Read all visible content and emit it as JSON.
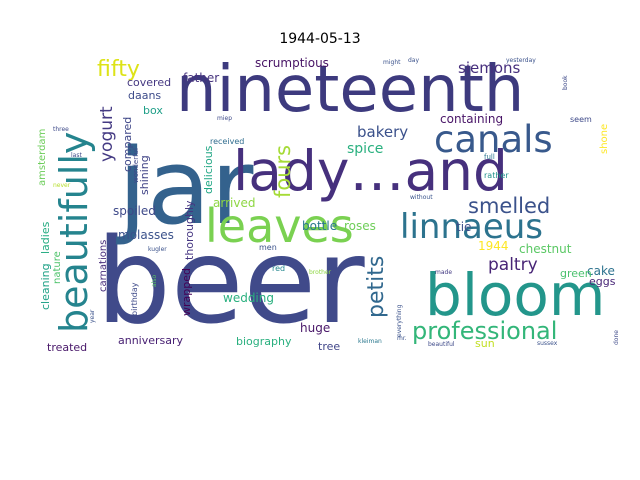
{
  "chart_data": {
    "type": "wordcloud",
    "title": "1944-05-13",
    "colormap": "viridis",
    "background": "#ffffff",
    "words": [
      {
        "text": "beer",
        "weight": 100,
        "color": "#404a8a"
      },
      {
        "text": "jar",
        "weight": 95,
        "color": "#34628d"
      },
      {
        "text": "nineteenth",
        "weight": 62,
        "color": "#3d3a7e"
      },
      {
        "text": "bloom",
        "weight": 55,
        "color": "#23968b"
      },
      {
        "text": "lady…and",
        "weight": 52,
        "color": "#46307d"
      },
      {
        "text": "leaves",
        "weight": 46,
        "color": "#7ad151"
      },
      {
        "text": "beautifully",
        "weight": 38,
        "color": "#25848e"
      },
      {
        "text": "canals",
        "weight": 34,
        "color": "#38598c"
      },
      {
        "text": "linnaeus",
        "weight": 33,
        "color": "#2c738e"
      },
      {
        "text": "professional",
        "weight": 25,
        "color": "#33b679"
      },
      {
        "text": "petits",
        "weight": 22,
        "color": "#31688e"
      },
      {
        "text": "smelled",
        "weight": 21,
        "color": "#3b528b"
      },
      {
        "text": "fours",
        "weight": 20,
        "color": "#a5db36"
      },
      {
        "text": "fifty",
        "weight": 19,
        "color": "#dde318"
      },
      {
        "text": "paltry",
        "weight": 18,
        "color": "#482576"
      },
      {
        "text": "yogurt",
        "weight": 17,
        "color": "#443a83"
      },
      {
        "text": "siemons",
        "weight": 15,
        "color": "#472f7d"
      },
      {
        "text": "bakery",
        "weight": 15,
        "color": "#3b518b"
      },
      {
        "text": "spice",
        "weight": 14,
        "color": "#2ab07f"
      },
      {
        "text": "scrumptious",
        "weight": 12,
        "color": "#471365"
      },
      {
        "text": "containing",
        "weight": 11,
        "color": "#481467"
      },
      {
        "text": "father",
        "weight": 11,
        "color": "#46337e"
      },
      {
        "text": "covered",
        "weight": 10,
        "color": "#453882"
      },
      {
        "text": "daans",
        "weight": 10,
        "color": "#3e4c8a"
      },
      {
        "text": "box",
        "weight": 10,
        "color": "#1f9f88"
      },
      {
        "text": "compared",
        "weight": 10,
        "color": "#3f4788"
      },
      {
        "text": "shining",
        "weight": 10,
        "color": "#414487"
      },
      {
        "text": "spoiled",
        "weight": 11,
        "color": "#3e4989"
      },
      {
        "text": "delicious",
        "weight": 10,
        "color": "#22a785"
      },
      {
        "text": "thoroughly",
        "weight": 10,
        "color": "#453581"
      },
      {
        "text": "arrived",
        "weight": 11,
        "color": "#8fd744"
      },
      {
        "text": "bottle",
        "weight": 11,
        "color": "#2a788e"
      },
      {
        "text": "roses",
        "weight": 11,
        "color": "#6ece58"
      },
      {
        "text": "tie",
        "weight": 11,
        "color": "#3c4f8a"
      },
      {
        "text": "chestnut",
        "weight": 11,
        "color": "#5ac864"
      },
      {
        "text": "1944",
        "weight": 11,
        "color": "#fde725"
      },
      {
        "text": "eggs",
        "weight": 10,
        "color": "#482677"
      },
      {
        "text": "cake",
        "weight": 11,
        "color": "#2c728e"
      },
      {
        "text": "green",
        "weight": 10,
        "color": "#4ac16d"
      },
      {
        "text": "molasses",
        "weight": 11,
        "color": "#3b528b"
      },
      {
        "text": "wrapped",
        "weight": 10,
        "color": "#440154"
      },
      {
        "text": "wedding",
        "weight": 11,
        "color": "#2ab07f"
      },
      {
        "text": "huge",
        "weight": 11,
        "color": "#481668"
      },
      {
        "text": "biography",
        "weight": 10,
        "color": "#2ab07f"
      },
      {
        "text": "tree",
        "weight": 10,
        "color": "#404588"
      },
      {
        "text": "sun",
        "weight": 10,
        "color": "#c2df23"
      },
      {
        "text": "anniversary",
        "weight": 10,
        "color": "#482173"
      },
      {
        "text": "treated",
        "weight": 10,
        "color": "#481769"
      },
      {
        "text": "cleaning",
        "weight": 10,
        "color": "#1fa187"
      },
      {
        "text": "ladies",
        "weight": 10,
        "color": "#25ac82"
      },
      {
        "text": "amsterdam",
        "weight": 9,
        "color": "#6ccd5a"
      },
      {
        "text": "nature",
        "weight": 9,
        "color": "#4ec36b"
      },
      {
        "text": "carnations",
        "weight": 9,
        "color": "#472d7b"
      },
      {
        "text": "shone",
        "weight": 9,
        "color": "#fde725"
      },
      {
        "text": "received",
        "weight": 7,
        "color": "#2f6c8e"
      },
      {
        "text": "wonderful",
        "weight": 6,
        "color": "#3f4788"
      },
      {
        "text": "birthday",
        "weight": 7,
        "color": "#3e4a89"
      },
      {
        "text": "men",
        "weight": 7,
        "color": "#3b528b"
      },
      {
        "text": "red",
        "weight": 7,
        "color": "#24878e"
      },
      {
        "text": "seem",
        "weight": 7,
        "color": "#3e4a89"
      },
      {
        "text": "rather",
        "weight": 7,
        "color": "#20928c"
      },
      {
        "text": "full",
        "weight": 6,
        "color": "#2a768e"
      },
      {
        "text": "without",
        "weight": 5,
        "color": "#3a548c"
      },
      {
        "text": "made",
        "weight": 5,
        "color": "#443b84"
      },
      {
        "text": "everything",
        "weight": 5,
        "color": "#3b528b"
      },
      {
        "text": "done",
        "weight": 5,
        "color": "#3e4a89"
      },
      {
        "text": "beautiful",
        "weight": 5,
        "color": "#3e4a89"
      },
      {
        "text": "kleiman",
        "weight": 5,
        "color": "#2a788e"
      },
      {
        "text": "mr.",
        "weight": 5,
        "color": "#3b528b"
      },
      {
        "text": "brother",
        "weight": 5,
        "color": "#8fd744"
      },
      {
        "text": "kugler",
        "weight": 5,
        "color": "#3b528b"
      },
      {
        "text": "year",
        "weight": 5,
        "color": "#3b528b"
      },
      {
        "text": "also",
        "weight": 5,
        "color": "#5ac864"
      },
      {
        "text": "miep",
        "weight": 5,
        "color": "#3e4a89"
      },
      {
        "text": "three",
        "weight": 5,
        "color": "#3e4a89"
      },
      {
        "text": "last",
        "weight": 5,
        "color": "#3e4a89"
      },
      {
        "text": "never",
        "weight": 5,
        "color": "#b5de2b"
      },
      {
        "text": "might",
        "weight": 5,
        "color": "#3b528b"
      },
      {
        "text": "day",
        "weight": 5,
        "color": "#3b528b"
      },
      {
        "text": "yesterday",
        "weight": 5,
        "color": "#3b528b"
      },
      {
        "text": "book",
        "weight": 5,
        "color": "#3e4a89"
      },
      {
        "text": "sussex",
        "weight": 5,
        "color": "#3b528b"
      }
    ]
  }
}
